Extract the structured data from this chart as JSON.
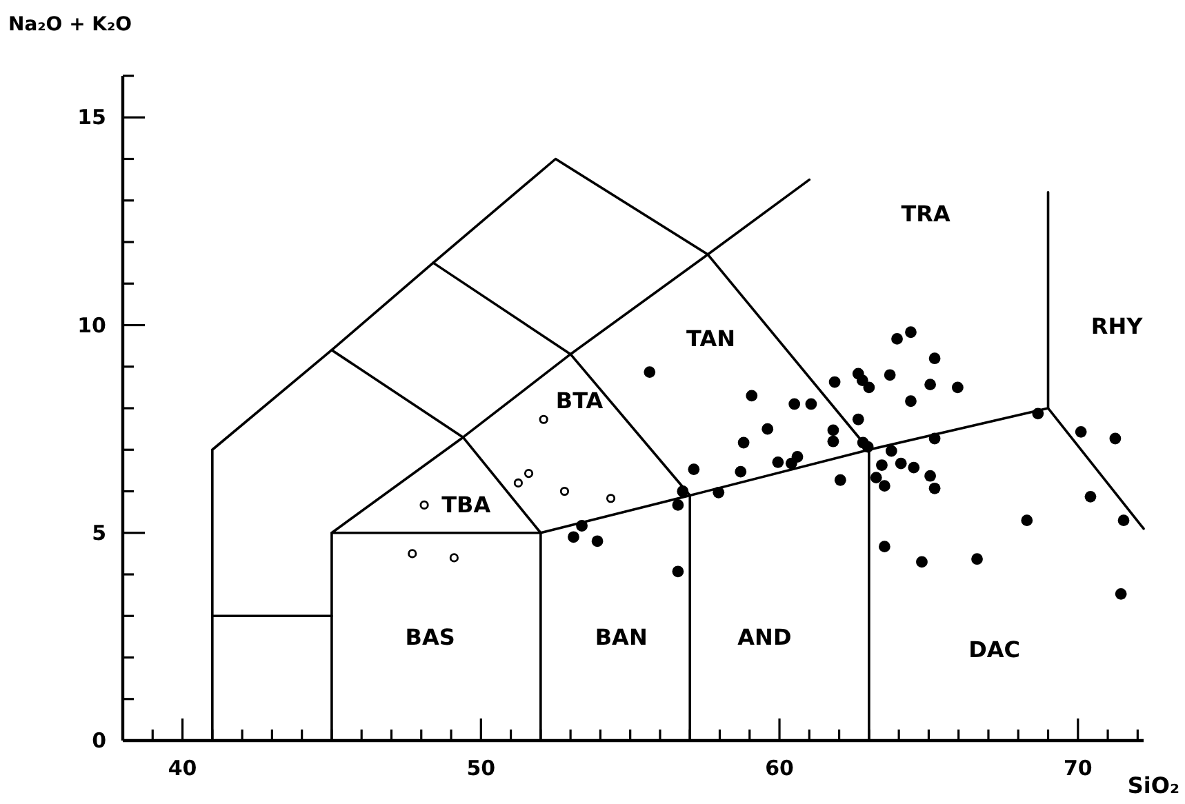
{
  "chart_data": {
    "type": "scatter",
    "xlabel": "SiO₂",
    "ylabel": "Na₂O + K₂O",
    "xlim": [
      38,
      72.2
    ],
    "ylim": [
      0,
      16
    ],
    "xticks": [
      {
        "value": 39,
        "label": null
      },
      40,
      {
        "value": 41,
        "label": null
      },
      {
        "value": 42,
        "label": null
      },
      {
        "value": 43,
        "label": null
      },
      {
        "value": 44,
        "label": null
      },
      {
        "value": 45,
        "label": null
      },
      {
        "value": 46,
        "label": null
      },
      {
        "value": 47,
        "label": null
      },
      {
        "value": 48,
        "label": null
      },
      {
        "value": 49,
        "label": null
      },
      50,
      {
        "value": 51,
        "label": null
      },
      {
        "value": 52,
        "label": null
      },
      {
        "value": 53,
        "label": null
      },
      {
        "value": 54,
        "label": null
      },
      {
        "value": 55,
        "label": null
      },
      {
        "value": 56,
        "label": null
      },
      {
        "value": 57,
        "label": null
      },
      {
        "value": 58,
        "label": null
      },
      {
        "value": 59,
        "label": null
      },
      60,
      {
        "value": 61,
        "label": null
      },
      {
        "value": 62,
        "label": null
      },
      {
        "value": 63,
        "label": null
      },
      {
        "value": 64,
        "label": null
      },
      {
        "value": 65,
        "label": null
      },
      {
        "value": 66,
        "label": null
      },
      {
        "value": 67,
        "label": null
      },
      {
        "value": 68,
        "label": null
      },
      {
        "value": 69,
        "label": null
      },
      70,
      {
        "value": 71,
        "label": null
      },
      {
        "value": 72,
        "label": null
      }
    ],
    "yticks": [
      0,
      {
        "value": 1,
        "label": null
      },
      {
        "value": 2,
        "label": null
      },
      {
        "value": 3,
        "label": null
      },
      {
        "value": 4,
        "label": null
      },
      5,
      {
        "value": 6,
        "label": null
      },
      {
        "value": 7,
        "label": null
      },
      {
        "value": 8,
        "label": null
      },
      {
        "value": 9,
        "label": null
      },
      10,
      {
        "value": 11,
        "label": null
      },
      {
        "value": 12,
        "label": null
      },
      {
        "value": 13,
        "label": null
      },
      {
        "value": 14,
        "label": null
      },
      15,
      {
        "value": 16,
        "label": null
      }
    ],
    "grid": false,
    "annotations": [
      "TBA",
      "BTA",
      "TAN",
      "TRA",
      "RHY",
      "BAS",
      "BAN",
      "AND",
      "DAC"
    ],
    "series": [
      {
        "type": "line",
        "color": "#000000",
        "marker": "none",
        "x": [
          41,
          41,
          45,
          48.4,
          52.5,
          57.6,
          63,
          63
        ],
        "values": [
          0,
          7,
          9.4,
          11.5,
          14,
          11.7,
          7,
          0
        ]
      },
      {
        "type": "line",
        "color": "#000000",
        "marker": "none",
        "x": [
          41,
          45
        ],
        "values": [
          3,
          3
        ]
      },
      {
        "type": "line",
        "color": "#000000",
        "marker": "none",
        "x": [
          45,
          45,
          49.4,
          53,
          57.6,
          61
        ],
        "values": [
          0,
          5,
          7.3,
          9.3,
          11.7,
          13.5
        ]
      },
      {
        "type": "line",
        "color": "#000000",
        "marker": "none",
        "x": [
          45,
          49.4,
          52,
          52
        ],
        "values": [
          9.4,
          7.3,
          5,
          0
        ]
      },
      {
        "type": "line",
        "color": "#000000",
        "marker": "none",
        "x": [
          48.4,
          53,
          57,
          57
        ],
        "values": [
          11.5,
          9.3,
          5.9,
          0
        ]
      },
      {
        "type": "line",
        "color": "#000000",
        "marker": "none",
        "x": [
          45,
          52,
          57,
          63,
          69,
          69
        ],
        "values": [
          5,
          5,
          5.9,
          7,
          8,
          13.2
        ]
      },
      {
        "type": "line",
        "color": "#000000",
        "marker": "none",
        "x": [
          69,
          72.2
        ],
        "values": [
          8,
          5.1
        ]
      },
      {
        "color": "#000000",
        "marker": "circle",
        "x": [
          48.1,
          47.7,
          49.1,
          52.1,
          51.6,
          51.25,
          52.8,
          54.35
        ],
        "values": [
          5.67,
          4.5,
          4.4,
          7.73,
          6.43,
          6.2,
          6.0,
          5.83
        ]
      },
      {
        "color": "#000000",
        "marker": "circle",
        "x": [
          55.65,
          59.07,
          60.5,
          61.06,
          61.85,
          59.6,
          58.8,
          61.8,
          61.8,
          57.13,
          58.7,
          59.95,
          60.6,
          60.4,
          62.04,
          57.96,
          56.76,
          56.6,
          53.38,
          53.1,
          53.9,
          56.6,
          63.94,
          64.4,
          65.2,
          62.64,
          62.78,
          63.0,
          63.7,
          65.05,
          65.97,
          64.4,
          62.64,
          62.8,
          62.96,
          65.2,
          68.66,
          70.1,
          71.25,
          63.75,
          63.43,
          64.07,
          64.5,
          63.24,
          63.52,
          65.05,
          65.2,
          63.52,
          64.77,
          66.62,
          68.29,
          70.42,
          71.53,
          71.44
        ],
        "values": [
          8.87,
          8.3,
          8.1,
          8.1,
          8.63,
          7.5,
          7.17,
          7.47,
          7.2,
          6.53,
          6.47,
          6.7,
          6.83,
          6.67,
          6.27,
          5.97,
          6.0,
          5.67,
          5.17,
          4.9,
          4.8,
          4.07,
          9.67,
          9.83,
          9.2,
          8.83,
          8.67,
          8.5,
          8.8,
          8.57,
          8.5,
          8.17,
          7.73,
          7.17,
          7.07,
          7.27,
          7.87,
          7.43,
          7.27,
          6.97,
          6.63,
          6.67,
          6.57,
          6.33,
          6.13,
          6.37,
          6.07,
          4.67,
          4.3,
          4.37,
          5.3,
          5.87,
          5.3,
          3.53
        ]
      }
    ]
  }
}
